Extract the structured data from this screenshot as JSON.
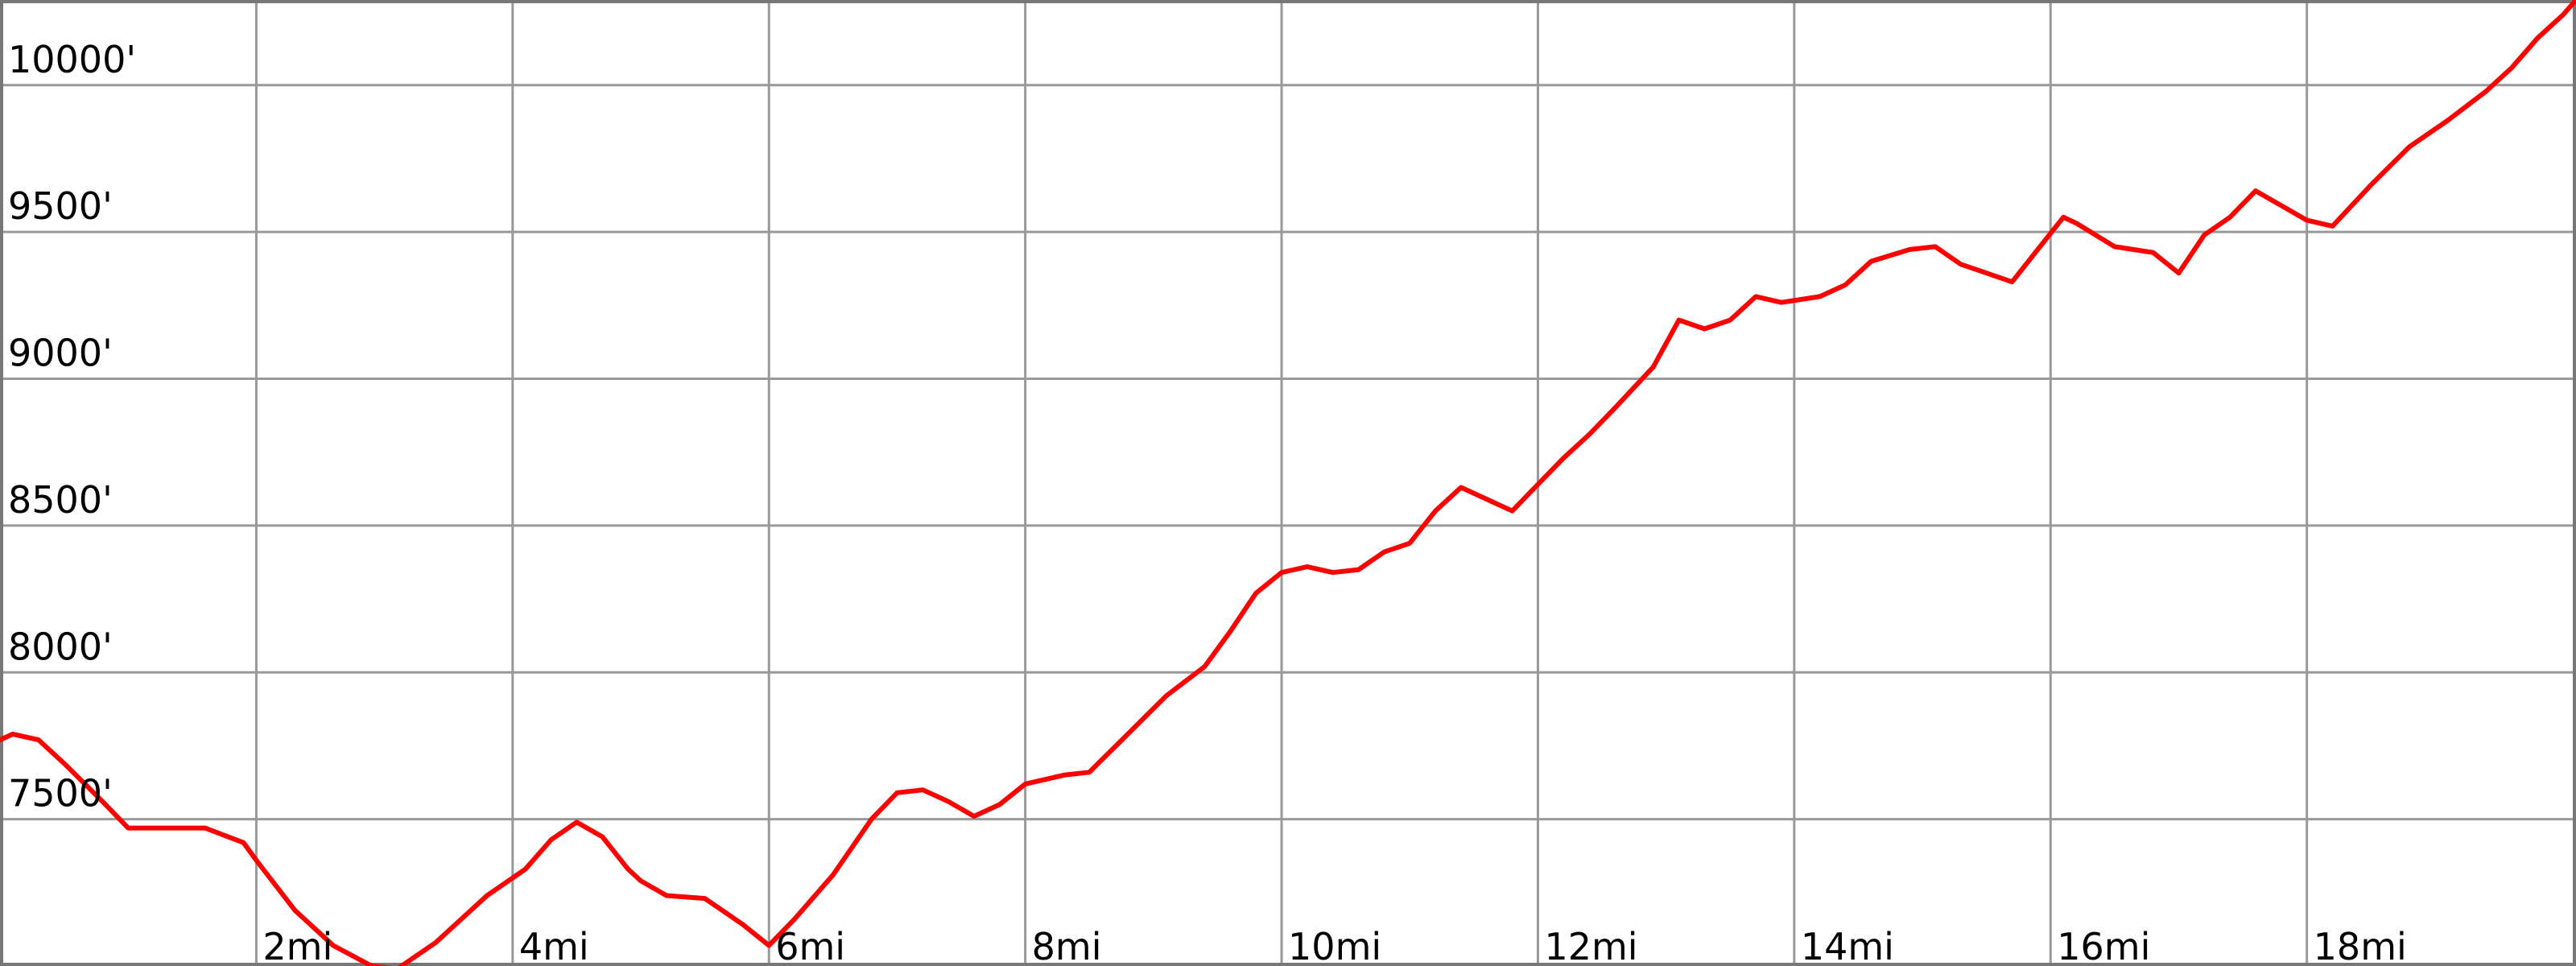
{
  "chart_data": {
    "type": "line",
    "title": "",
    "xlabel": "",
    "ylabel": "",
    "xlim": [
      0,
      20.1
    ],
    "ylim": [
      7000,
      10290
    ],
    "grid": true,
    "x_ticks": [
      {
        "value": 2,
        "label": "2mi"
      },
      {
        "value": 4,
        "label": "4mi"
      },
      {
        "value": 6,
        "label": "6mi"
      },
      {
        "value": 8,
        "label": "8mi"
      },
      {
        "value": 10,
        "label": "10mi"
      },
      {
        "value": 12,
        "label": "12mi"
      },
      {
        "value": 14,
        "label": "14mi"
      },
      {
        "value": 16,
        "label": "16mi"
      },
      {
        "value": 18,
        "label": "18mi"
      }
    ],
    "y_ticks": [
      {
        "value": 7500,
        "label": "7500'"
      },
      {
        "value": 8000,
        "label": "8000'"
      },
      {
        "value": 8500,
        "label": "8500'"
      },
      {
        "value": 9000,
        "label": "9000'"
      },
      {
        "value": 9500,
        "label": "9500'"
      },
      {
        "value": 10000,
        "label": "10000'"
      }
    ],
    "colors": {
      "line": "#ff0000",
      "grid": "#999999"
    },
    "series": [
      {
        "x": [
          0,
          0.1,
          0.3,
          0.5,
          0.8,
          1.0,
          1.3,
          1.6,
          1.9,
          2.0,
          2.3,
          2.6,
          2.9,
          3.1,
          3.4,
          3.8,
          4.1,
          4.3,
          4.5,
          4.7,
          4.9,
          5.0,
          5.2,
          5.5,
          5.8,
          6.0,
          6.2,
          6.5,
          6.8,
          7.0,
          7.2,
          7.4,
          7.6,
          7.8,
          8.0,
          8.3,
          8.5,
          8.8,
          9.1,
          9.4,
          9.6,
          9.8,
          10.0,
          10.2,
          10.4,
          10.6,
          10.8,
          11.0,
          11.2,
          11.4,
          11.6,
          11.8,
          12.0,
          12.2,
          12.4,
          12.6,
          12.9,
          13.1,
          13.3,
          13.5,
          13.7,
          13.9,
          14.2,
          14.4,
          14.6,
          14.9,
          15.1,
          15.3,
          15.5,
          15.7,
          15.9,
          16.1,
          16.2,
          16.5,
          16.8,
          17.0,
          17.2,
          17.4,
          17.6,
          17.8,
          18.0,
          18.2,
          18.5,
          18.8,
          19.1,
          19.4,
          19.6,
          19.8,
          20.0,
          20.1
        ],
        "values": [
          7770,
          7790,
          7770,
          7690,
          7560,
          7470,
          7470,
          7470,
          7420,
          7360,
          7190,
          7070,
          7000,
          6990,
          7080,
          7240,
          7330,
          7430,
          7490,
          7440,
          7330,
          7290,
          7240,
          7230,
          7140,
          7070,
          7160,
          7310,
          7500,
          7590,
          7600,
          7560,
          7510,
          7550,
          7620,
          7650,
          7660,
          7790,
          7920,
          8020,
          8140,
          8270,
          8340,
          8360,
          8340,
          8350,
          8410,
          8440,
          8550,
          8630,
          8590,
          8550,
          8640,
          8730,
          8810,
          8900,
          9040,
          9200,
          9170,
          9200,
          9280,
          9260,
          9280,
          9320,
          9400,
          9440,
          9450,
          9390,
          9360,
          9330,
          9440,
          9550,
          9530,
          9450,
          9430,
          9360,
          9490,
          9550,
          9640,
          9590,
          9540,
          9520,
          9660,
          9790,
          9880,
          9980,
          10060,
          10160,
          10240,
          10290
        ]
      }
    ]
  }
}
